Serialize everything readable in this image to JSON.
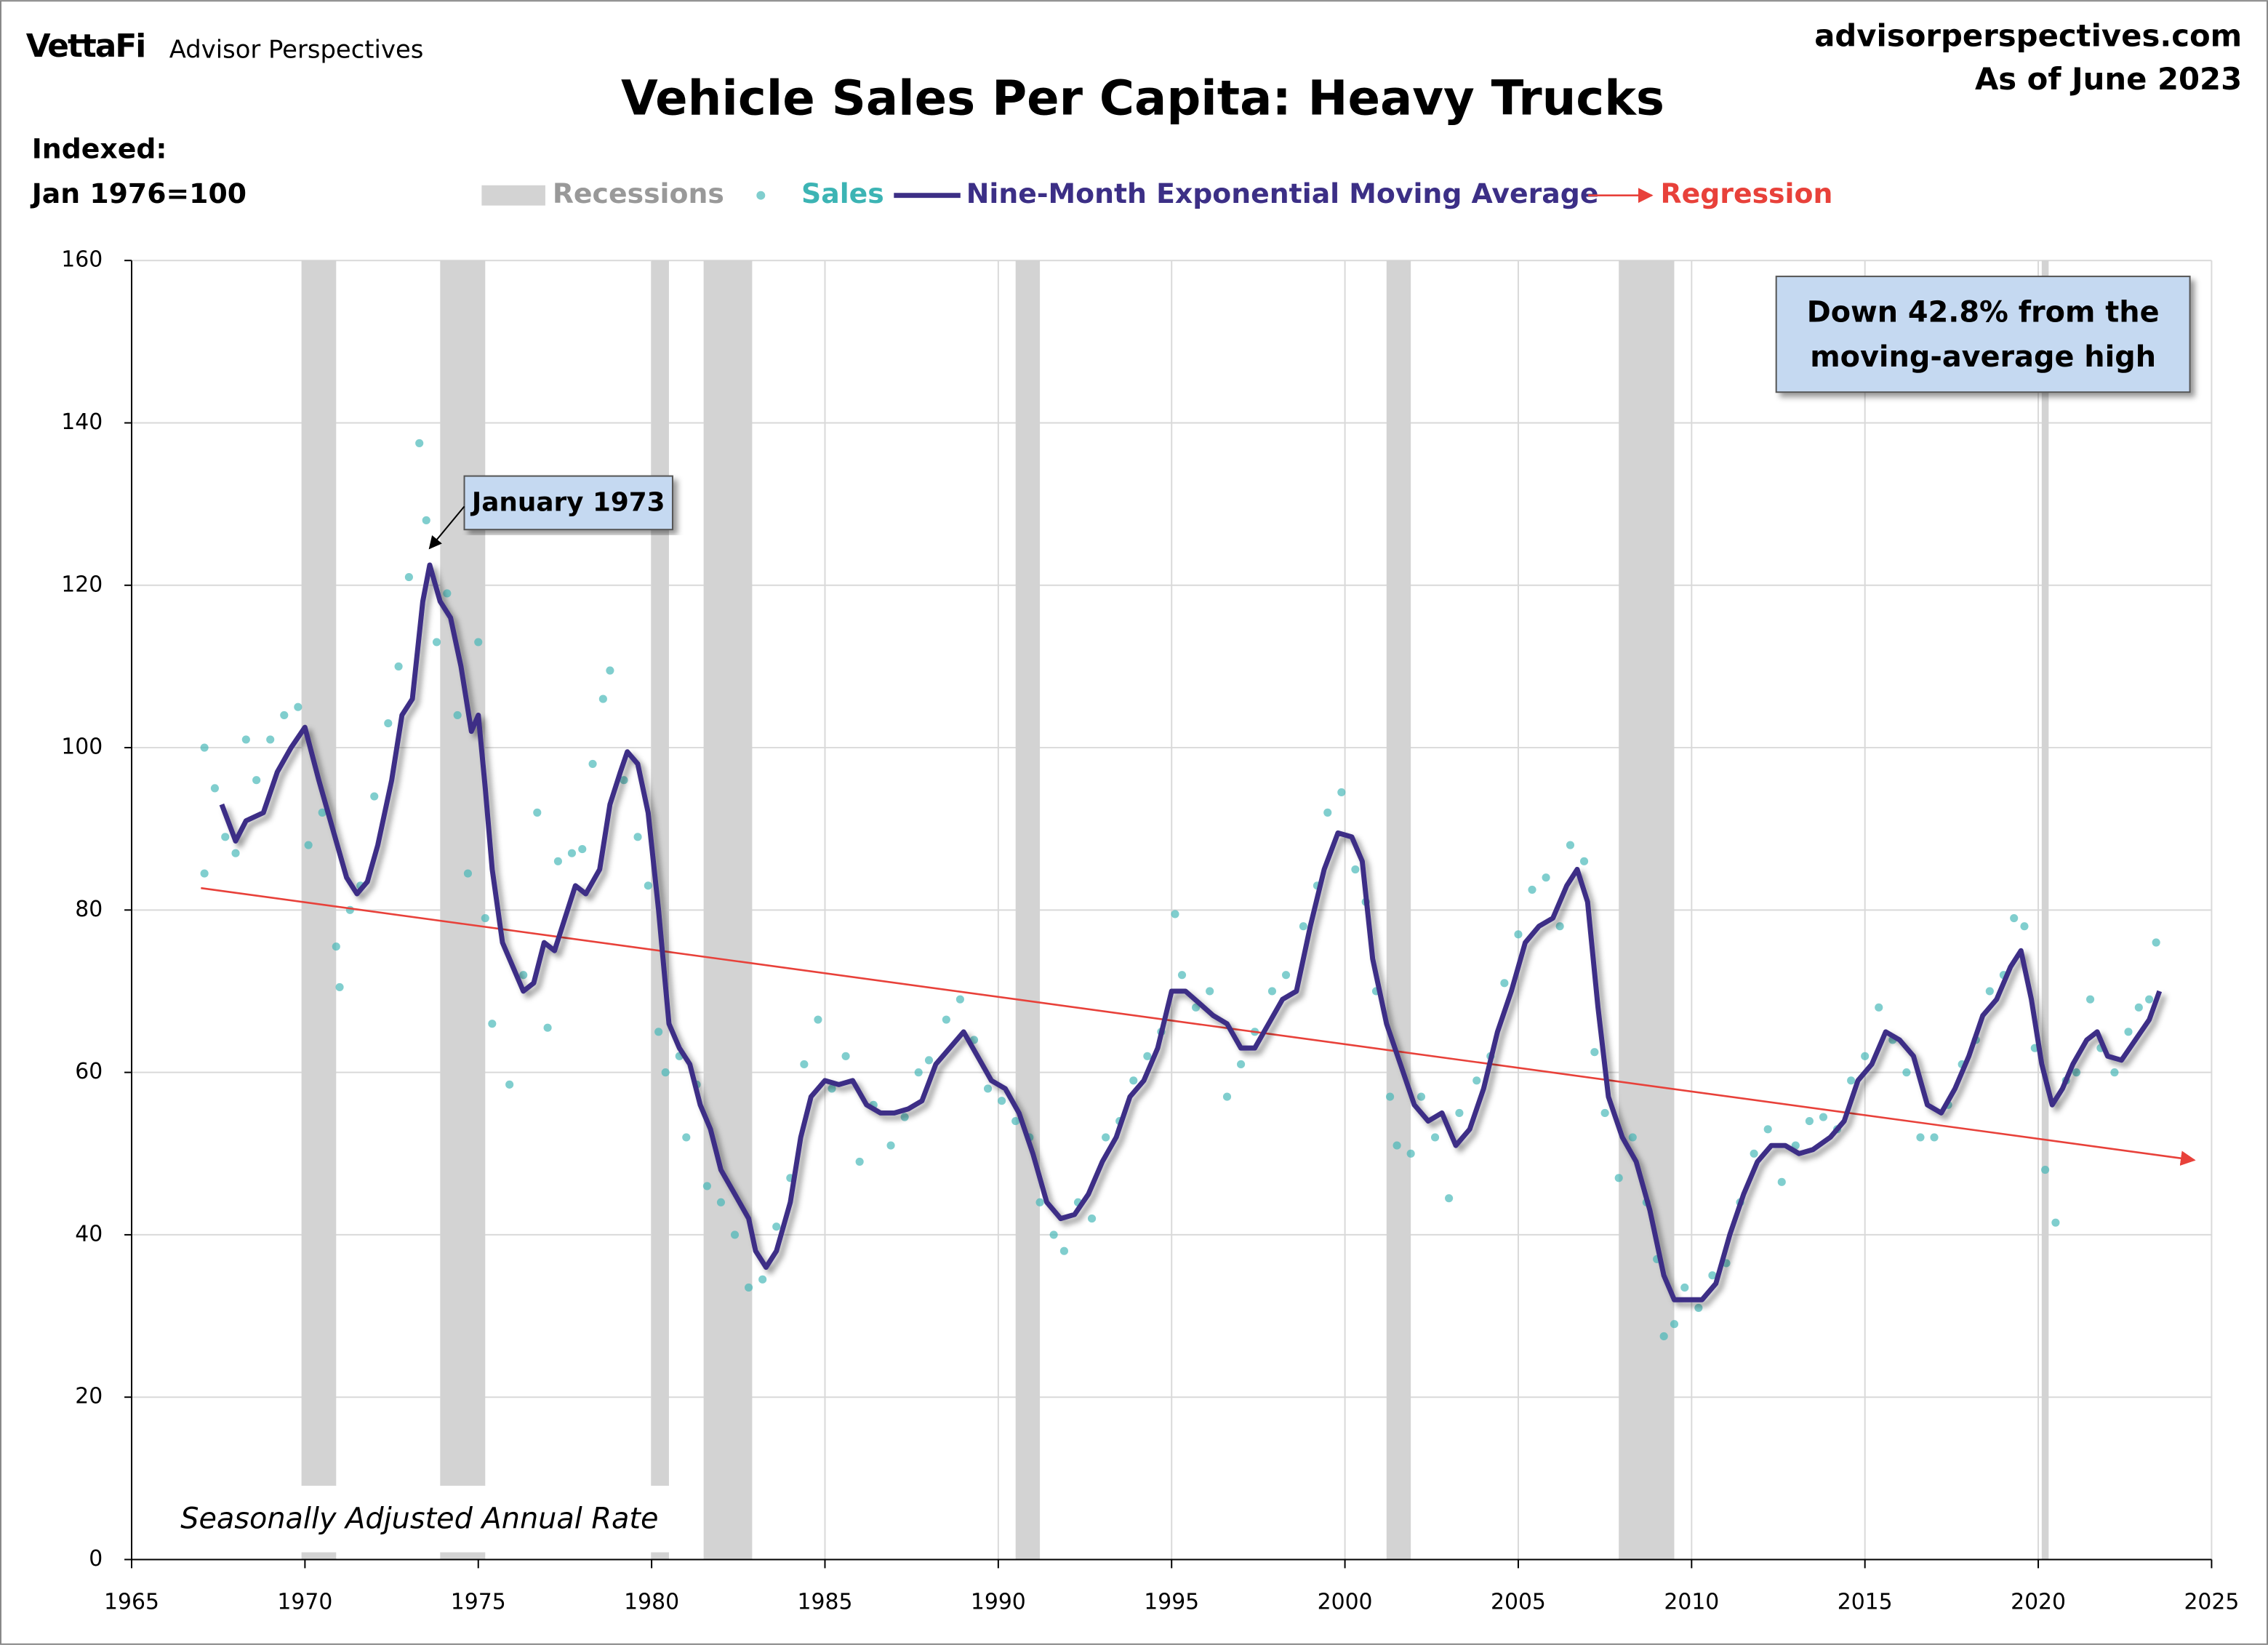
{
  "chart_data": {
    "type": "scatter-line",
    "title": "Vehicle Sales Per Capita: Heavy Trucks",
    "brand": "VettaFi",
    "brand_sub": "Advisor Perspectives",
    "site": "advisorperspectives.com",
    "as_of": "As of June 2023",
    "y_label": [
      "Indexed:",
      "Jan 1976=100"
    ],
    "note": "Seasonally Adjusted Annual Rate",
    "annotation": "January 1973",
    "callout": [
      "Down 42.8% from the",
      "moving-average high"
    ],
    "xlim": [
      1965,
      2025
    ],
    "xticks": [
      1965,
      1970,
      1975,
      1980,
      1985,
      1990,
      1995,
      2000,
      2005,
      2010,
      2015,
      2020,
      2025
    ],
    "ylim": [
      0,
      160
    ],
    "yticks": [
      0,
      20,
      40,
      60,
      80,
      100,
      120,
      140,
      160
    ],
    "grid": true,
    "recessions": {
      "name": "Recessions",
      "color": "#d3d3d3",
      "periods": [
        [
          1969.9,
          1970.9
        ],
        [
          1973.9,
          1975.2
        ],
        [
          1980.0,
          1980.5
        ],
        [
          1981.5,
          1982.9
        ],
        [
          1990.5,
          1991.2
        ],
        [
          2001.2,
          2001.9
        ],
        [
          2007.9,
          2009.5
        ],
        [
          2020.1,
          2020.3
        ]
      ]
    },
    "series": [
      {
        "name": "Sales",
        "kind": "scatter",
        "color": "#3cb4b4",
        "x": [
          1967.1,
          1967.1,
          1967.4,
          1967.7,
          1968.0,
          1968.3,
          1968.6,
          1969.0,
          1969.4,
          1969.8,
          1970.1,
          1970.5,
          1970.9,
          1971.0,
          1971.3,
          1971.6,
          1972.0,
          1972.4,
          1972.7,
          1973.0,
          1973.3,
          1973.5,
          1973.8,
          1974.1,
          1974.4,
          1974.7,
          1975.0,
          1975.2,
          1975.4,
          1975.9,
          1976.3,
          1976.7,
          1977.0,
          1977.3,
          1977.7,
          1978.0,
          1978.3,
          1978.6,
          1978.8,
          1979.2,
          1979.6,
          1979.9,
          1980.2,
          1980.4,
          1980.8,
          1981.0,
          1981.3,
          1981.6,
          1982.0,
          1982.4,
          1982.8,
          1983.2,
          1983.6,
          1984.0,
          1984.4,
          1984.8,
          1985.2,
          1985.6,
          1986.0,
          1986.4,
          1986.9,
          1987.3,
          1987.7,
          1988.0,
          1988.5,
          1988.9,
          1989.3,
          1989.7,
          1990.1,
          1990.5,
          1990.9,
          1991.2,
          1991.6,
          1991.9,
          1992.3,
          1992.7,
          1993.1,
          1993.5,
          1993.9,
          1994.3,
          1994.7,
          1995.1,
          1995.3,
          1995.7,
          1996.1,
          1996.6,
          1997.0,
          1997.4,
          1997.9,
          1998.3,
          1998.8,
          1999.2,
          1999.5,
          1999.9,
          2000.3,
          2000.6,
          2000.9,
          2001.3,
          2001.5,
          2001.9,
          2002.2,
          2002.6,
          2003.0,
          2003.3,
          2003.8,
          2004.2,
          2004.6,
          2005.0,
          2005.4,
          2005.8,
          2006.2,
          2006.5,
          2006.9,
          2007.2,
          2007.5,
          2007.9,
          2008.3,
          2008.7,
          2009.0,
          2009.2,
          2009.5,
          2009.8,
          2010.2,
          2010.6,
          2011.0,
          2011.4,
          2011.8,
          2012.2,
          2012.6,
          2013.0,
          2013.4,
          2013.8,
          2014.2,
          2014.6,
          2015.0,
          2015.4,
          2015.8,
          2016.2,
          2016.6,
          2017.0,
          2017.4,
          2017.8,
          2018.2,
          2018.6,
          2019.0,
          2019.3,
          2019.6,
          2019.9,
          2020.2,
          2020.5,
          2020.8,
          2021.1,
          2021.5,
          2021.8,
          2022.2,
          2022.6,
          2022.9,
          2023.2,
          2023.4
        ],
        "values": [
          100,
          84.5,
          95,
          89,
          87,
          101,
          96,
          101,
          104,
          105,
          88,
          92,
          75.5,
          70.5,
          80,
          83,
          94,
          103,
          110,
          121,
          137.5,
          128,
          113,
          119,
          104,
          84.5,
          113,
          79,
          66,
          58.5,
          72,
          92,
          65.5,
          86,
          87,
          87.5,
          98,
          106,
          109.5,
          96,
          89,
          83,
          65,
          60,
          62,
          52,
          58.5,
          46,
          44,
          40,
          33.5,
          34.5,
          41,
          47,
          61,
          66.5,
          58,
          62,
          49,
          56,
          51,
          54.5,
          60,
          61.5,
          66.5,
          69,
          64,
          58,
          56.5,
          54,
          52,
          44,
          40,
          38,
          44,
          42,
          52,
          54,
          59,
          62,
          65,
          79.5,
          72,
          68,
          70,
          57,
          61,
          65,
          70,
          72,
          78,
          83,
          92,
          94.5,
          85,
          81,
          70,
          57,
          51,
          50,
          57,
          52,
          44.5,
          55,
          59,
          62,
          71,
          77,
          82.5,
          84,
          78,
          88,
          86,
          62.5,
          55,
          47,
          52,
          44,
          37,
          27.5,
          29,
          33.5,
          31,
          35,
          36.5,
          44,
          50,
          53,
          46.5,
          51,
          54,
          54.5,
          53,
          59,
          62,
          68,
          64,
          60,
          52,
          52,
          56,
          61,
          64,
          70,
          72,
          79,
          78,
          63,
          48,
          41.5,
          59,
          60,
          69,
          63,
          60,
          65,
          68,
          69,
          76
        ]
      },
      {
        "name": "Nine-Month Exponential Moving Average",
        "kind": "line",
        "color": "#3c2f86",
        "x": [
          1967.6,
          1968.0,
          1968.3,
          1968.8,
          1969.2,
          1969.6,
          1970.0,
          1970.4,
          1970.8,
          1971.2,
          1971.5,
          1971.8,
          1972.1,
          1972.5,
          1972.8,
          1973.1,
          1973.4,
          1973.6,
          1973.9,
          1974.2,
          1974.5,
          1974.8,
          1975.0,
          1975.2,
          1975.4,
          1975.7,
          1976.0,
          1976.3,
          1976.6,
          1976.9,
          1977.2,
          1977.5,
          1977.8,
          1978.1,
          1978.5,
          1978.8,
          1979.1,
          1979.3,
          1979.6,
          1979.9,
          1980.2,
          1980.5,
          1980.8,
          1981.1,
          1981.4,
          1981.7,
          1982.0,
          1982.4,
          1982.8,
          1983.0,
          1983.3,
          1983.6,
          1984.0,
          1984.3,
          1984.6,
          1985.0,
          1985.4,
          1985.8,
          1986.2,
          1986.6,
          1987.0,
          1987.4,
          1987.8,
          1988.2,
          1988.6,
          1989.0,
          1989.4,
          1989.8,
          1990.2,
          1990.6,
          1991.0,
          1991.4,
          1991.8,
          1992.2,
          1992.6,
          1993.0,
          1993.4,
          1993.8,
          1994.2,
          1994.6,
          1995.0,
          1995.4,
          1995.8,
          1996.2,
          1996.6,
          1997.0,
          1997.4,
          1997.8,
          1998.2,
          1998.6,
          1999.0,
          1999.4,
          1999.8,
          2000.2,
          2000.5,
          2000.8,
          2001.2,
          2001.6,
          2002.0,
          2002.4,
          2002.8,
          2003.2,
          2003.6,
          2004.0,
          2004.4,
          2004.8,
          2005.2,
          2005.6,
          2006.0,
          2006.4,
          2006.7,
          2007.0,
          2007.3,
          2007.6,
          2008.0,
          2008.4,
          2008.8,
          2009.2,
          2009.5,
          2009.9,
          2010.3,
          2010.7,
          2011.1,
          2011.5,
          2011.9,
          2012.3,
          2012.7,
          2013.1,
          2013.5,
          2014.0,
          2014.4,
          2014.8,
          2015.2,
          2015.6,
          2016.0,
          2016.4,
          2016.8,
          2017.2,
          2017.6,
          2018.0,
          2018.4,
          2018.8,
          2019.2,
          2019.5,
          2019.8,
          2020.1,
          2020.4,
          2020.7,
          2021.0,
          2021.4,
          2021.7,
          2022.0,
          2022.4,
          2022.8,
          2023.2,
          2023.5
        ],
        "values": [
          93,
          88.5,
          91,
          92,
          97,
          100,
          102.5,
          96,
          90,
          84,
          82,
          83.5,
          88,
          96,
          104,
          106,
          118,
          122.5,
          118,
          116,
          110,
          102,
          104,
          95,
          85,
          76,
          73,
          70,
          71,
          76,
          75,
          79,
          83,
          82,
          85,
          93,
          97,
          99.5,
          98,
          92,
          80,
          66,
          63,
          61,
          56,
          53,
          48,
          45,
          42,
          38,
          36,
          38,
          44,
          52,
          57,
          59,
          58.5,
          59,
          56,
          55,
          55,
          55.5,
          56.5,
          61,
          63,
          65,
          62,
          59,
          58,
          55,
          50,
          44,
          42,
          42.5,
          45,
          49,
          52,
          57,
          59,
          63,
          70,
          70,
          68.5,
          67,
          66,
          63,
          63,
          66,
          69,
          70,
          78,
          85,
          89.5,
          89,
          86,
          74,
          66,
          61,
          56,
          54,
          55,
          51,
          53,
          58,
          65,
          70,
          76,
          78,
          79,
          83,
          85,
          81,
          68,
          57,
          52,
          49,
          43,
          35,
          32,
          32,
          32,
          34,
          40,
          45,
          49,
          51,
          51,
          50,
          50.5,
          52,
          54,
          59,
          61,
          65,
          64,
          62,
          56,
          55,
          58,
          62,
          67,
          69,
          73,
          75,
          69,
          61,
          56,
          58,
          61,
          64,
          65,
          62,
          61.5,
          64,
          66.5,
          70
        ]
      },
      {
        "name": "Regression",
        "kind": "regression",
        "color": "#e8413a",
        "x": [
          1967.0,
          2024.5
        ],
        "values": [
          82.7,
          49.2
        ]
      }
    ]
  }
}
